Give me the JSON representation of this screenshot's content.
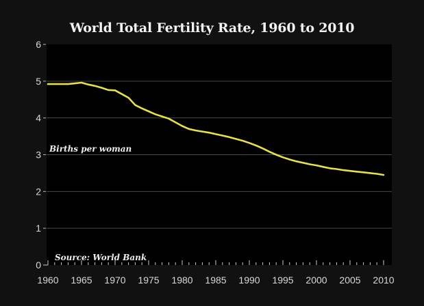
{
  "chart_data": {
    "type": "line",
    "title": "World Total Fertility Rate, 1960 to 2010",
    "xlabel": "",
    "ylabel": "Births per woman",
    "annotations": [
      "Births per woman",
      "Source: World Bank"
    ],
    "xlim": [
      1960,
      2010
    ],
    "ylim": [
      0,
      6
    ],
    "x_ticks": [
      1960,
      1965,
      1970,
      1975,
      1980,
      1985,
      1990,
      1995,
      2000,
      2005,
      2010
    ],
    "x_tick_labels": [
      "1960",
      "1965",
      "1970",
      "1975",
      "1980",
      "1985",
      "1990",
      "1995",
      "2000",
      "2005",
      "2010"
    ],
    "y_ticks": [
      0,
      1,
      2,
      3,
      4,
      5,
      6
    ],
    "y_tick_labels": [
      "0",
      "1",
      "2",
      "3",
      "4",
      "5",
      "6"
    ],
    "grid": "horizontal",
    "legend": "none",
    "line_color": "#e6e14a",
    "series": [
      {
        "name": "World Total Fertility Rate",
        "x": [
          1960,
          1961,
          1962,
          1963,
          1964,
          1965,
          1966,
          1967,
          1968,
          1969,
          1970,
          1971,
          1972,
          1973,
          1974,
          1975,
          1976,
          1977,
          1978,
          1979,
          1980,
          1981,
          1982,
          1983,
          1984,
          1985,
          1986,
          1987,
          1988,
          1989,
          1990,
          1991,
          1992,
          1993,
          1994,
          1995,
          1996,
          1997,
          1998,
          1999,
          2000,
          2001,
          2002,
          2003,
          2004,
          2005,
          2006,
          2007,
          2008,
          2009,
          2010
        ],
        "values": [
          4.92,
          4.92,
          4.92,
          4.92,
          4.94,
          4.96,
          4.91,
          4.87,
          4.82,
          4.76,
          4.75,
          4.65,
          4.55,
          4.35,
          4.26,
          4.18,
          4.1,
          4.04,
          3.98,
          3.88,
          3.78,
          3.7,
          3.66,
          3.63,
          3.6,
          3.56,
          3.52,
          3.48,
          3.43,
          3.38,
          3.32,
          3.25,
          3.17,
          3.08,
          3.0,
          2.93,
          2.87,
          2.82,
          2.78,
          2.74,
          2.71,
          2.67,
          2.63,
          2.61,
          2.58,
          2.56,
          2.54,
          2.52,
          2.5,
          2.48,
          2.45
        ]
      }
    ]
  }
}
